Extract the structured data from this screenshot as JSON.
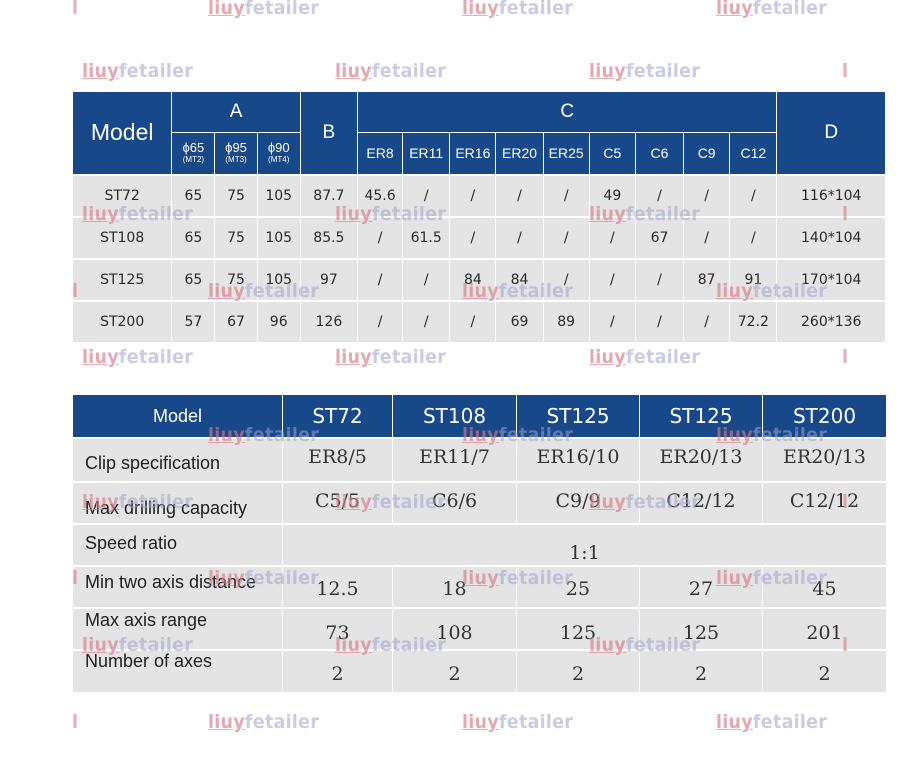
{
  "watermark": {
    "lead": "liuy",
    "rest": "fetailer",
    "pipe": "l",
    "full": "liuyfetailer"
  },
  "colors": {
    "header_bg": "#17488a",
    "cell_bg": "#e4e4e4",
    "header_text": "#ffffff"
  },
  "table1": {
    "header": {
      "model": "Model",
      "group_a": "A",
      "group_b": "B",
      "group_c": "C",
      "group_d": "D",
      "a_cols": [
        {
          "main": "ϕ65",
          "sub": "(MT2)"
        },
        {
          "main": "ϕ95",
          "sub": "(MT3)"
        },
        {
          "main": "ϕ90",
          "sub": "(MT4)"
        }
      ],
      "c_cols": [
        "ER8",
        "ER11",
        "ER16",
        "ER20",
        "ER25",
        "C5",
        "C6",
        "C9",
        "C12"
      ]
    },
    "rows": [
      {
        "model": "ST72",
        "a": [
          "65",
          "75",
          "105"
        ],
        "b": "87.7",
        "c": [
          "45.6",
          "/",
          "/",
          "/",
          "/",
          "49",
          "/",
          "/",
          "/"
        ],
        "d": "116*104"
      },
      {
        "model": "ST108",
        "a": [
          "65",
          "75",
          "105"
        ],
        "b": "85.5",
        "c": [
          "/",
          "61.5",
          "/",
          "/",
          "/",
          "/",
          "67",
          "/",
          "/"
        ],
        "d": "140*104"
      },
      {
        "model": "ST125",
        "a": [
          "65",
          "75",
          "105"
        ],
        "b": "97",
        "c": [
          "/",
          "/",
          "84",
          "84",
          "/",
          "/",
          "/",
          "87",
          "91"
        ],
        "d": "170*104"
      },
      {
        "model": "ST200",
        "a": [
          "57",
          "67",
          "96"
        ],
        "b": "126",
        "c": [
          "/",
          "/",
          "/",
          "69",
          "89",
          "/",
          "/",
          "/",
          "72.2"
        ],
        "d": "260*136"
      }
    ]
  },
  "table2": {
    "header": [
      "Model",
      "ST72",
      "ST108",
      "ST125",
      "ST125",
      "ST200"
    ],
    "rows": {
      "clip": {
        "label": "Clip specification",
        "values": [
          "ER8/5",
          "ER11/7",
          "ER16/10",
          "ER20/13",
          "ER20/13"
        ]
      },
      "drill": {
        "label": "Max drilling capacity",
        "values": [
          "C5/5",
          "C6/6",
          "C9/9",
          "C12/12",
          "C12/12"
        ]
      },
      "speed": {
        "label": "Speed ratio",
        "value": "1:1"
      },
      "min": {
        "label": "Min two axis distance",
        "values": [
          "12.5",
          "18",
          "25",
          "27",
          "45"
        ]
      },
      "axis": {
        "label": "Max axis range",
        "values": [
          "73",
          "108",
          "125",
          "125",
          "201"
        ]
      },
      "num": {
        "label": "Number of axes",
        "values": [
          "2",
          "2",
          "2",
          "2",
          "2"
        ]
      }
    }
  }
}
